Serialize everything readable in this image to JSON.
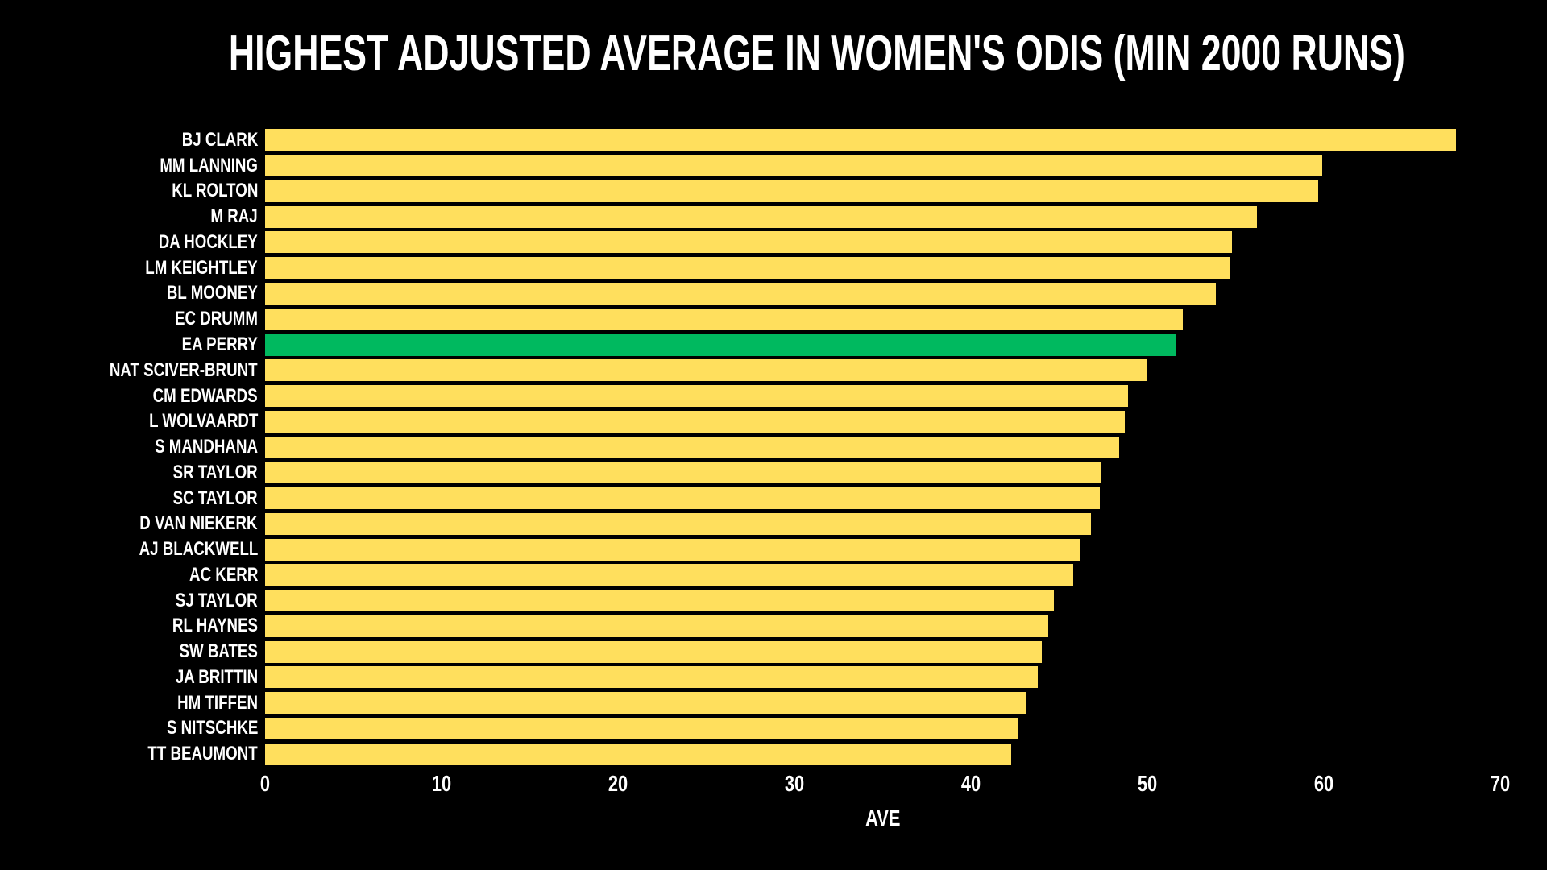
{
  "title": "HIGHEST ADJUSTED AVERAGE IN WOMEN'S ODIS (MIN 2000 RUNS)",
  "colors": {
    "background": "#000000",
    "bar": "#FFDF5D",
    "highlight": "#00B95F",
    "text": "#FFFFFF"
  },
  "chart_data": {
    "type": "bar",
    "orientation": "horizontal",
    "title": "HIGHEST ADJUSTED AVERAGE IN WOMEN'S ODIS (MIN 2000 RUNS)",
    "xlabel": "AVE",
    "ylabel": "",
    "xlim": [
      0,
      70
    ],
    "x_ticks": [
      0,
      10,
      20,
      30,
      40,
      50,
      60,
      70
    ],
    "grid": false,
    "legend": false,
    "categories": [
      "BJ CLARK",
      "MM LANNING",
      "KL ROLTON",
      "M RAJ",
      "DA HOCKLEY",
      "LM KEIGHTLEY",
      "BL MOONEY",
      "EC DRUMM",
      "EA PERRY",
      "NAT SCIVER-BRUNT",
      "CM EDWARDS",
      "L WOLVAARDT",
      "S MANDHANA",
      "SR TAYLOR",
      "SC TAYLOR",
      "D VAN NIEKERK",
      "AJ BLACKWELL",
      "AC KERR",
      "SJ TAYLOR",
      "RL HAYNES",
      "SW BATES",
      "JA BRITTIN",
      "HM TIFFEN",
      "S NITSCHKE",
      "TT BEAUMONT"
    ],
    "values": [
      67.5,
      59.9,
      59.7,
      56.2,
      54.8,
      54.7,
      53.9,
      52.0,
      51.6,
      50.0,
      48.9,
      48.7,
      48.4,
      47.4,
      47.3,
      46.8,
      46.2,
      45.8,
      44.7,
      44.4,
      44.0,
      43.8,
      43.1,
      42.7,
      42.3
    ],
    "highlighted_category": "EA PERRY",
    "highlighted_index": 8
  }
}
